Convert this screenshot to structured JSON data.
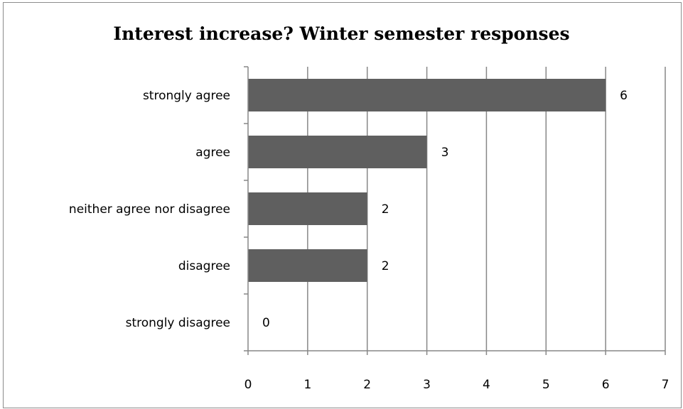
{
  "chart_data": {
    "type": "bar",
    "orientation": "horizontal",
    "title": "Interest increase? Winter semester responses",
    "xlabel": "",
    "ylabel": "",
    "categories": [
      "strongly agree",
      "agree",
      "neither agree nor disagree",
      "disagree",
      "strongly disagree"
    ],
    "values": [
      6,
      3,
      2,
      2,
      0
    ],
    "data_labels": [
      "6",
      "3",
      "2",
      "2",
      "0"
    ],
    "xlim": [
      0,
      7
    ],
    "xticks": [
      "0",
      "1",
      "2",
      "3",
      "4",
      "5",
      "6",
      "7"
    ],
    "grid": true,
    "legend": "none",
    "bar_color": "#5f5f5f",
    "grid_color": "#878787"
  }
}
